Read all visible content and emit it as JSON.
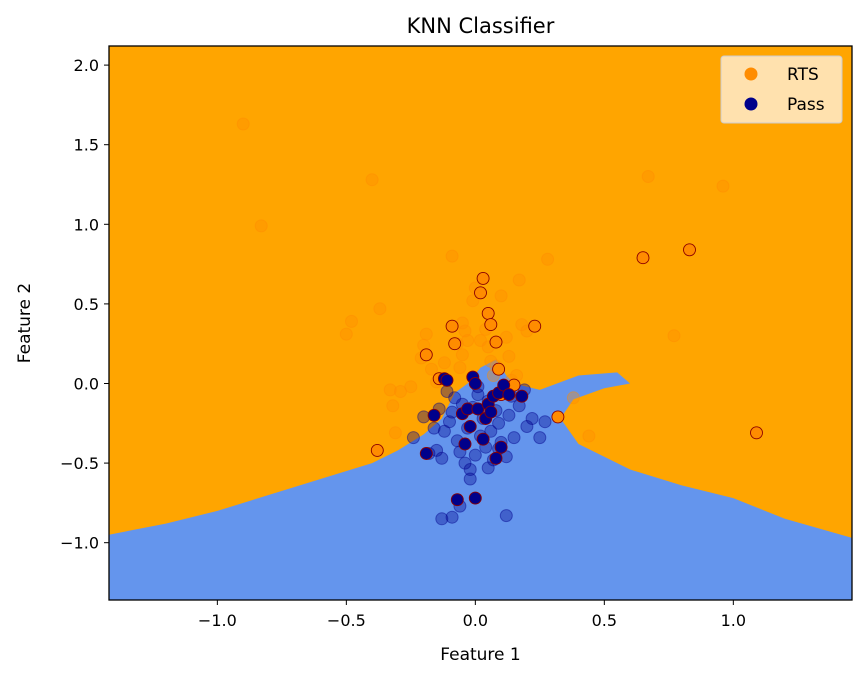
{
  "chart_data": {
    "type": "scatter",
    "title": "KNN Classifier",
    "xlabel": "Feature 1",
    "ylabel": "Feature 2",
    "xlim": [
      -1.42,
      1.46
    ],
    "ylim": [
      -1.36,
      2.12
    ],
    "x_ticks": [
      -1.0,
      -0.5,
      0.0,
      0.5,
      1.0
    ],
    "x_tick_labels": [
      "−1.0",
      "−0.5",
      "0.0",
      "0.5",
      "1.0"
    ],
    "y_ticks": [
      -1.0,
      -0.5,
      0.0,
      0.5,
      1.0,
      1.5,
      2.0
    ],
    "y_tick_labels": [
      "−1.0",
      "−0.5",
      "0.0",
      "0.5",
      "1.0",
      "1.5",
      "2.0"
    ],
    "grid": false,
    "legend": {
      "position": "top-right",
      "entries": [
        "RTS",
        "Pass"
      ]
    },
    "colors": {
      "rts_region": "#FFA500",
      "pass_region": "#6495ED",
      "rts_point": "#FF8C00",
      "pass_point": "#00008B",
      "test_edge": "#8B0000",
      "legend_bg": "#FFEBCC"
    },
    "decision_boundary": [
      [
        -1.42,
        -0.95
      ],
      [
        -1.2,
        -0.88
      ],
      [
        -1.0,
        -0.8
      ],
      [
        -0.8,
        -0.7
      ],
      [
        -0.6,
        -0.6
      ],
      [
        -0.4,
        -0.5
      ],
      [
        -0.3,
        -0.42
      ],
      [
        -0.2,
        -0.32
      ],
      [
        -0.13,
        -0.22
      ],
      [
        -0.08,
        -0.06
      ],
      [
        -0.03,
        0.0
      ],
      [
        0.02,
        0.1
      ],
      [
        0.08,
        0.15
      ],
      [
        0.12,
        0.05
      ],
      [
        0.15,
        0.0
      ],
      [
        0.25,
        -0.04
      ],
      [
        0.4,
        0.05
      ],
      [
        0.55,
        0.07
      ],
      [
        0.6,
        0.0
      ],
      [
        0.5,
        -0.03
      ],
      [
        0.38,
        -0.1
      ],
      [
        0.33,
        -0.22
      ],
      [
        0.4,
        -0.38
      ],
      [
        0.6,
        -0.54
      ],
      [
        0.8,
        -0.64
      ],
      [
        1.0,
        -0.72
      ],
      [
        1.2,
        -0.85
      ],
      [
        1.46,
        -0.97
      ]
    ],
    "series": [
      {
        "name": "RTS",
        "role": "train",
        "x": [
          -0.9,
          -0.83,
          -0.4,
          -0.5,
          -0.48,
          -0.37,
          -0.33,
          -0.32,
          -0.31,
          -0.29,
          -0.25,
          -0.21,
          -0.19,
          -0.17,
          -0.15,
          -0.12,
          -0.09,
          -0.07,
          -0.06,
          -0.05,
          -0.04,
          -0.03,
          -0.01,
          0.0,
          0.02,
          0.04,
          0.05,
          0.06,
          0.08,
          0.1,
          0.12,
          0.14,
          0.16,
          0.17,
          0.18,
          0.2,
          0.28,
          0.44,
          0.67,
          0.77,
          0.96,
          0.13,
          0.38,
          -0.2,
          -0.05,
          0.07
        ],
        "y": [
          1.63,
          0.99,
          1.28,
          0.31,
          0.39,
          0.47,
          -0.04,
          -0.14,
          -0.31,
          -0.05,
          -0.02,
          0.16,
          0.31,
          0.09,
          0.01,
          0.13,
          0.8,
          0.25,
          0.1,
          0.38,
          0.33,
          0.27,
          0.52,
          0.6,
          0.27,
          0.34,
          0.23,
          0.14,
          0.11,
          0.55,
          0.29,
          0.02,
          0.05,
          0.65,
          0.37,
          0.33,
          0.78,
          -0.33,
          1.3,
          0.3,
          1.24,
          0.17,
          -0.09,
          0.24,
          0.18,
          0.05
        ]
      },
      {
        "name": "Pass",
        "role": "train",
        "x": [
          -0.24,
          -0.2,
          -0.18,
          -0.16,
          -0.15,
          -0.14,
          -0.13,
          -0.12,
          -0.11,
          -0.1,
          -0.09,
          -0.08,
          -0.07,
          -0.06,
          -0.05,
          -0.04,
          -0.03,
          -0.02,
          -0.01,
          0.0,
          0.01,
          0.02,
          0.03,
          0.04,
          0.05,
          0.06,
          0.07,
          0.08,
          0.09,
          0.1,
          0.11,
          0.12,
          0.13,
          0.14,
          0.15,
          0.17,
          0.19,
          0.22,
          0.25,
          0.27,
          -0.13,
          -0.06,
          0.12,
          -0.02,
          0.01,
          0.05,
          0.09,
          -0.09,
          0.2
        ],
        "y": [
          -0.34,
          -0.21,
          -0.44,
          -0.28,
          -0.42,
          -0.16,
          -0.47,
          -0.3,
          -0.05,
          -0.24,
          -0.18,
          -0.09,
          -0.36,
          -0.43,
          -0.13,
          -0.5,
          -0.28,
          -0.6,
          -0.15,
          -0.45,
          -0.07,
          -0.33,
          -0.22,
          -0.4,
          -0.11,
          -0.3,
          -0.48,
          -0.17,
          -0.25,
          -0.37,
          -0.06,
          -0.46,
          -0.2,
          -0.08,
          -0.34,
          -0.14,
          -0.04,
          -0.22,
          -0.34,
          -0.24,
          -0.85,
          -0.77,
          -0.83,
          -0.54,
          -0.02,
          -0.53,
          -0.41,
          -0.84,
          -0.27
        ]
      },
      {
        "name": "RTS",
        "role": "test",
        "x": [
          -0.38,
          -0.19,
          -0.14,
          -0.09,
          -0.08,
          0.02,
          0.03,
          0.05,
          0.06,
          0.08,
          0.09,
          0.1,
          0.15,
          0.23,
          0.32,
          0.65,
          0.83,
          1.09
        ],
        "y": [
          -0.42,
          0.18,
          0.03,
          0.36,
          0.25,
          0.57,
          0.66,
          0.44,
          0.37,
          0.26,
          0.09,
          -0.07,
          -0.01,
          0.36,
          -0.21,
          0.79,
          0.84,
          -0.31
        ]
      },
      {
        "name": "Pass",
        "role": "test",
        "x": [
          -0.19,
          -0.16,
          -0.12,
          -0.07,
          -0.05,
          -0.04,
          -0.03,
          -0.02,
          -0.01,
          0.0,
          0.0,
          0.01,
          0.03,
          0.04,
          0.05,
          0.06,
          0.07,
          0.08,
          0.09,
          0.1,
          0.11,
          0.13,
          0.18,
          -0.11
        ],
        "y": [
          -0.44,
          -0.2,
          0.03,
          -0.73,
          -0.19,
          -0.38,
          -0.16,
          -0.27,
          0.04,
          0.0,
          -0.72,
          -0.16,
          -0.35,
          -0.22,
          -0.13,
          -0.18,
          -0.08,
          -0.47,
          -0.06,
          -0.4,
          -0.01,
          -0.07,
          -0.08,
          0.02
        ]
      }
    ]
  }
}
